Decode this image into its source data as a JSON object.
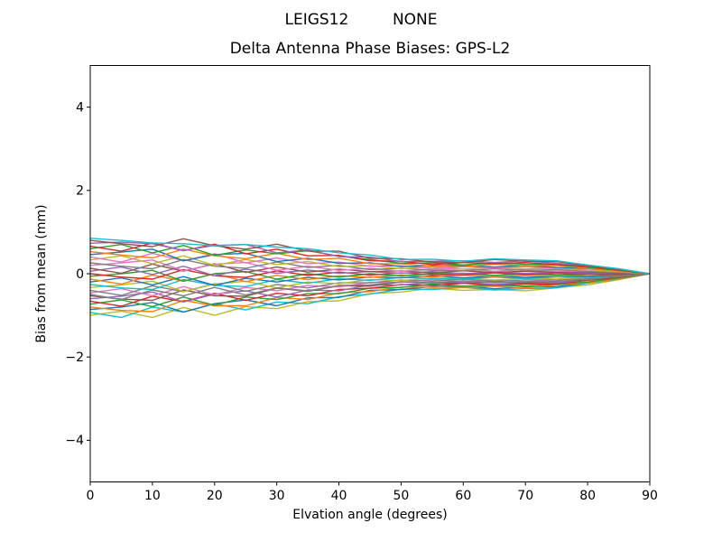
{
  "chart_data": {
    "type": "line",
    "suptitle": "LEIGS12         NONE",
    "title": "Delta Antenna Phase Biases: GPS-L2",
    "xlabel": "Elvation angle (degrees)",
    "ylabel": "Bias from mean (mm)",
    "xlim": [
      0,
      90
    ],
    "ylim": [
      -5,
      5
    ],
    "grid": false,
    "legend": "none",
    "background": "#ffffff",
    "axis_color": "#000000",
    "line_width": 1.4,
    "xticks": {
      "values": [
        0,
        10,
        20,
        30,
        40,
        50,
        60,
        70,
        80,
        90
      ],
      "labels": [
        "0",
        "10",
        "20",
        "30",
        "40",
        "50",
        "60",
        "70",
        "80",
        "90"
      ]
    },
    "yticks": {
      "values": [
        -4,
        -2,
        0,
        2,
        4
      ],
      "labels": [
        "−4",
        "−2",
        "0",
        "2",
        "4"
      ]
    },
    "x": [
      0,
      5,
      10,
      15,
      20,
      25,
      30,
      35,
      40,
      45,
      50,
      55,
      60,
      65,
      70,
      75,
      80,
      85,
      90
    ],
    "series": [
      {
        "color": "#bcbd22",
        "values": [
          -1.0,
          -0.9,
          -1.05,
          -0.81,
          -1.0,
          -0.79,
          -0.84,
          -0.67,
          -0.65,
          -0.48,
          -0.44,
          -0.35,
          -0.4,
          -0.38,
          -0.41,
          -0.34,
          -0.27,
          -0.14,
          0.0
        ]
      },
      {
        "color": "#17becf",
        "values": [
          -0.93,
          -1.05,
          -0.8,
          -0.92,
          -0.72,
          -0.87,
          -0.68,
          -0.72,
          -0.55,
          -0.49,
          -0.37,
          -0.38,
          -0.33,
          -0.39,
          -0.36,
          -0.34,
          -0.23,
          -0.13,
          0.0
        ]
      },
      {
        "color": "#1f77b4",
        "values": [
          -0.86,
          -0.8,
          -0.69,
          -0.92,
          -0.72,
          -0.63,
          -0.77,
          -0.58,
          -0.57,
          -0.4,
          -0.38,
          -0.31,
          -0.3,
          -0.36,
          -0.32,
          -0.31,
          -0.21,
          -0.11,
          0.0
        ]
      },
      {
        "color": "#ff7f0e",
        "values": [
          -0.8,
          -0.88,
          -0.91,
          -0.64,
          -0.77,
          -0.77,
          -0.57,
          -0.62,
          -0.46,
          -0.43,
          -0.32,
          -0.32,
          -0.33,
          -0.3,
          -0.34,
          -0.27,
          -0.22,
          -0.12,
          0.0
        ]
      },
      {
        "color": "#2ca02c",
        "values": [
          -0.73,
          -0.63,
          -0.79,
          -0.56,
          -0.76,
          -0.56,
          -0.62,
          -0.48,
          -0.48,
          -0.35,
          -0.33,
          -0.25,
          -0.3,
          -0.27,
          -0.3,
          -0.25,
          -0.2,
          -0.1,
          0.0
        ]
      },
      {
        "color": "#d62728",
        "values": [
          -0.66,
          -0.78,
          -0.54,
          -0.67,
          -0.47,
          -0.64,
          -0.47,
          -0.53,
          -0.38,
          -0.35,
          -0.26,
          -0.28,
          -0.23,
          -0.28,
          -0.25,
          -0.24,
          -0.16,
          -0.09,
          0.0
        ]
      },
      {
        "color": "#9467bd",
        "values": [
          -0.6,
          -0.54,
          -0.44,
          -0.68,
          -0.49,
          -0.41,
          -0.56,
          -0.39,
          -0.41,
          -0.27,
          -0.27,
          -0.21,
          -0.2,
          -0.26,
          -0.22,
          -0.22,
          -0.15,
          -0.07,
          0.0
        ]
      },
      {
        "color": "#8c564b",
        "values": [
          -0.53,
          -0.61,
          -0.64,
          -0.39,
          -0.53,
          -0.54,
          -0.35,
          -0.42,
          -0.29,
          -0.3,
          -0.2,
          -0.22,
          -0.23,
          -0.19,
          -0.23,
          -0.18,
          -0.15,
          -0.08,
          0.0
        ]
      },
      {
        "color": "#e377c2",
        "values": [
          -0.46,
          -0.36,
          -0.53,
          -0.31,
          -0.51,
          -0.33,
          -0.41,
          -0.28,
          -0.32,
          -0.21,
          -0.21,
          -0.14,
          -0.19,
          -0.16,
          -0.19,
          -0.15,
          -0.13,
          -0.06,
          0.0
        ]
      },
      {
        "color": "#7f7f7f",
        "values": [
          -0.4,
          -0.52,
          -0.29,
          -0.43,
          -0.24,
          -0.42,
          -0.26,
          -0.34,
          -0.22,
          -0.22,
          -0.15,
          -0.18,
          -0.13,
          -0.18,
          -0.15,
          -0.15,
          -0.09,
          -0.06,
          0.0
        ]
      },
      {
        "color": "#bcbd22",
        "values": [
          -0.33,
          -0.27,
          -0.18,
          -0.43,
          -0.25,
          -0.18,
          -0.34,
          -0.2,
          -0.24,
          -0.14,
          -0.16,
          -0.11,
          -0.1,
          -0.15,
          -0.11,
          -0.13,
          -0.08,
          -0.04,
          0.0
        ]
      },
      {
        "color": "#17becf",
        "values": [
          -0.26,
          -0.34,
          -0.38,
          -0.14,
          -0.28,
          -0.31,
          -0.14,
          -0.23,
          -0.12,
          -0.16,
          -0.09,
          -0.12,
          -0.13,
          -0.08,
          -0.12,
          -0.08,
          -0.08,
          -0.05,
          0.0
        ]
      },
      {
        "color": "#1f77b4",
        "values": [
          -0.2,
          -0.1,
          -0.27,
          -0.07,
          -0.28,
          -0.11,
          -0.2,
          -0.09,
          -0.15,
          -0.08,
          -0.1,
          -0.05,
          -0.1,
          -0.06,
          -0.09,
          -0.06,
          -0.06,
          -0.03,
          0.0
        ]
      },
      {
        "color": "#ff7f0e",
        "values": [
          -0.13,
          -0.25,
          -0.03,
          -0.18,
          0.0,
          -0.19,
          -0.04,
          -0.14,
          -0.05,
          -0.09,
          -0.03,
          -0.08,
          -0.03,
          -0.07,
          -0.04,
          -0.06,
          -0.02,
          -0.02,
          0.0
        ]
      },
      {
        "color": "#2ca02c",
        "values": [
          -0.06,
          0.0,
          0.08,
          -0.18,
          0.0,
          0.05,
          -0.13,
          0.0,
          -0.08,
          0.0,
          -0.05,
          0.0,
          0.01,
          -0.04,
          0.0,
          -0.03,
          -0.01,
          0.0,
          0.0
        ]
      },
      {
        "color": "#d62728",
        "values": [
          0.0,
          -0.08,
          -0.13,
          0.1,
          -0.05,
          -0.09,
          0.07,
          -0.04,
          0.04,
          -0.03,
          0.02,
          -0.02,
          -0.03,
          0.02,
          -0.02,
          0.01,
          -0.01,
          -0.01,
          0.0
        ]
      },
      {
        "color": "#9467bd",
        "values": [
          0.06,
          0.16,
          -0.02,
          0.18,
          -0.05,
          0.11,
          0.01,
          0.09,
          0.01,
          0.05,
          0.01,
          0.05,
          0.0,
          0.04,
          0.01,
          0.03,
          0.01,
          0.01,
          0.0
        ]
      },
      {
        "color": "#8c564b",
        "values": [
          0.13,
          0.01,
          0.23,
          0.06,
          0.24,
          0.03,
          0.16,
          0.04,
          0.11,
          0.05,
          0.07,
          0.02,
          0.07,
          0.03,
          0.06,
          0.04,
          0.04,
          0.02,
          0.0
        ]
      },
      {
        "color": "#e377c2",
        "values": [
          0.2,
          0.26,
          0.33,
          0.07,
          0.23,
          0.27,
          0.08,
          0.18,
          0.08,
          0.13,
          0.06,
          0.1,
          0.11,
          0.06,
          0.1,
          0.06,
          0.06,
          0.04,
          0.0
        ]
      },
      {
        "color": "#7f7f7f",
        "values": [
          0.26,
          0.18,
          0.12,
          0.34,
          0.18,
          0.13,
          0.28,
          0.15,
          0.2,
          0.1,
          0.13,
          0.08,
          0.07,
          0.12,
          0.08,
          0.1,
          0.06,
          0.03,
          0.0
        ]
      },
      {
        "color": "#bcbd22",
        "values": [
          0.33,
          0.43,
          0.24,
          0.43,
          0.2,
          0.34,
          0.22,
          0.29,
          0.17,
          0.19,
          0.12,
          0.16,
          0.11,
          0.15,
          0.12,
          0.13,
          0.08,
          0.05,
          0.0
        ]
      },
      {
        "color": "#e377c2",
        "values": [
          0.4,
          0.28,
          0.49,
          0.31,
          0.48,
          0.26,
          0.38,
          0.24,
          0.28,
          0.18,
          0.19,
          0.12,
          0.17,
          0.14,
          0.17,
          0.13,
          0.11,
          0.06,
          0.0
        ]
      },
      {
        "color": "#1f77b4",
        "values": [
          0.46,
          0.52,
          0.59,
          0.31,
          0.46,
          0.49,
          0.29,
          0.37,
          0.25,
          0.26,
          0.17,
          0.19,
          0.2,
          0.16,
          0.2,
          0.15,
          0.13,
          0.07,
          0.0
        ]
      },
      {
        "color": "#ff7f0e",
        "values": [
          0.53,
          0.45,
          0.38,
          0.59,
          0.43,
          0.36,
          0.49,
          0.34,
          0.37,
          0.24,
          0.24,
          0.18,
          0.17,
          0.23,
          0.19,
          0.2,
          0.13,
          0.06,
          0.0
        ]
      },
      {
        "color": "#2ca02c",
        "values": [
          0.6,
          0.7,
          0.5,
          0.68,
          0.44,
          0.57,
          0.48,
          0.55,
          0.42,
          0.34,
          0.25,
          0.26,
          0.21,
          0.26,
          0.23,
          0.22,
          0.15,
          0.08,
          0.0
        ]
      },
      {
        "color": "#d62728",
        "values": [
          0.66,
          0.54,
          0.74,
          0.55,
          0.71,
          0.48,
          0.59,
          0.43,
          0.44,
          0.31,
          0.3,
          0.22,
          0.27,
          0.24,
          0.27,
          0.22,
          0.18,
          0.09,
          0.0
        ]
      },
      {
        "color": "#9467bd",
        "values": [
          0.73,
          0.76,
          0.72,
          0.56,
          0.68,
          0.7,
          0.5,
          0.57,
          0.41,
          0.4,
          0.29,
          0.3,
          0.31,
          0.27,
          0.31,
          0.25,
          0.2,
          0.11,
          0.0
        ]
      },
      {
        "color": "#8c564b",
        "values": [
          0.8,
          0.72,
          0.65,
          0.84,
          0.67,
          0.59,
          0.71,
          0.54,
          0.54,
          0.37,
          0.36,
          0.28,
          0.27,
          0.34,
          0.3,
          0.29,
          0.2,
          0.1,
          0.0
        ]
      },
      {
        "color": "#17becf",
        "values": [
          0.85,
          0.8,
          0.74,
          0.72,
          0.67,
          0.7,
          0.64,
          0.6,
          0.5,
          0.45,
          0.34,
          0.35,
          0.3,
          0.36,
          0.33,
          0.31,
          0.21,
          0.12,
          0.0
        ]
      },
      {
        "color": "#7f7f7f",
        "values": [
          -0.5,
          -0.62,
          -0.39,
          -0.53,
          -0.33,
          -0.51,
          -0.34,
          -0.41,
          -0.28,
          -0.27,
          -0.19,
          -0.22,
          -0.17,
          -0.22,
          -0.19,
          -0.19,
          -0.12,
          -0.07,
          0.0
        ]
      }
    ]
  }
}
